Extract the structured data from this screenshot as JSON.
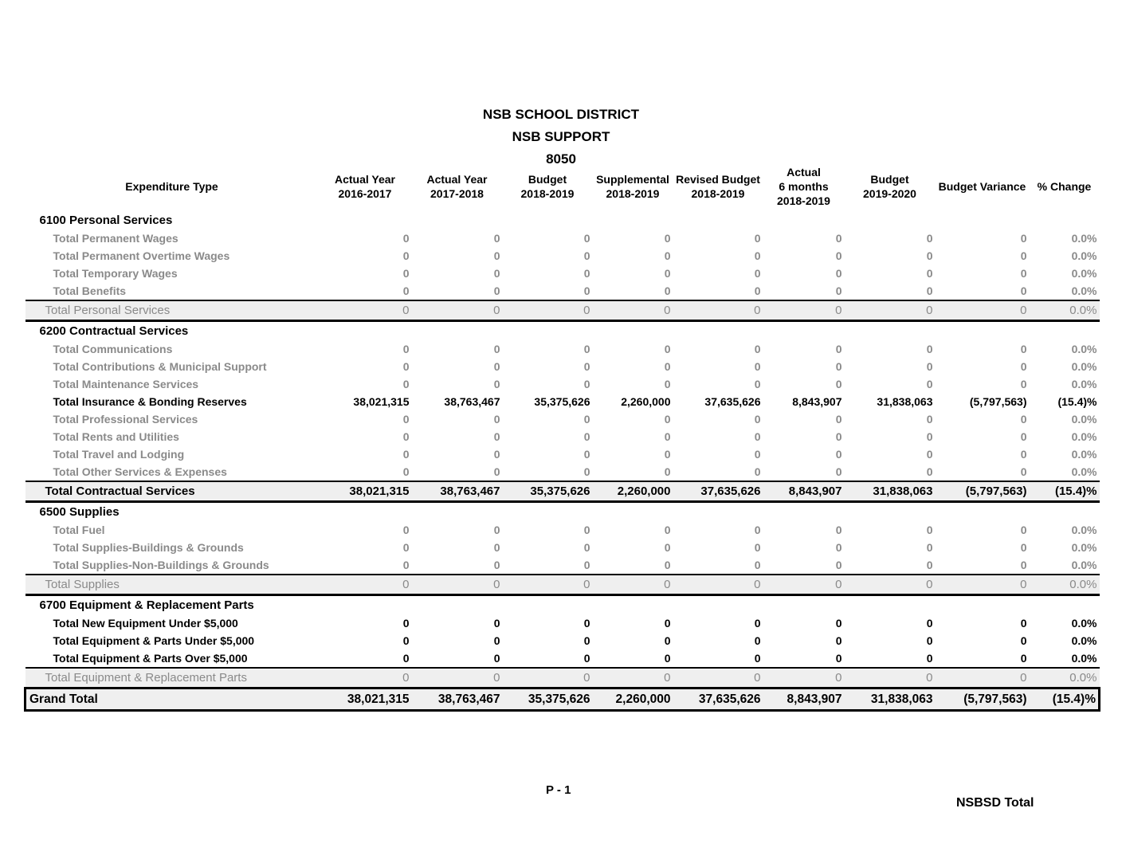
{
  "title": {
    "district": "NSB SCHOOL DISTRICT",
    "department": "NSB SUPPORT",
    "code": "8050"
  },
  "table": {
    "label_header": "Expenditure Type",
    "columns": [
      {
        "label": "Actual Year\n2016-2017"
      },
      {
        "label": "Actual Year\n2017-2018"
      },
      {
        "label": "Budget\n2018-2019"
      },
      {
        "label": "Supplemental\n2018-2019"
      },
      {
        "label": "Revised Budget\n2018-2019"
      },
      {
        "label": "Actual\n6 months\n2018-2019"
      },
      {
        "label": "Budget\n2019-2020"
      },
      {
        "label": "Budget Variance"
      },
      {
        "label": "% Change"
      }
    ],
    "sections": [
      {
        "heading": "6100 Personal Services",
        "rows": [
          {
            "label": "Total Permanent Wages",
            "emphasis": "muted",
            "values": [
              "0",
              "0",
              "0",
              "0",
              "0",
              "0",
              "0",
              "0",
              "0.0%"
            ]
          },
          {
            "label": "Total Permanent Overtime Wages",
            "emphasis": "muted",
            "values": [
              "0",
              "0",
              "0",
              "0",
              "0",
              "0",
              "0",
              "0",
              "0.0%"
            ]
          },
          {
            "label": "Total Temporary Wages",
            "emphasis": "muted",
            "values": [
              "0",
              "0",
              "0",
              "0",
              "0",
              "0",
              "0",
              "0",
              "0.0%"
            ]
          },
          {
            "label": "Total Benefits",
            "emphasis": "muted",
            "values": [
              "0",
              "0",
              "0",
              "0",
              "0",
              "0",
              "0",
              "0",
              "0.0%"
            ]
          }
        ],
        "total": {
          "label": "Total Personal Services",
          "emphasis": "muted",
          "values": [
            "0",
            "0",
            "0",
            "0",
            "0",
            "0",
            "0",
            "0",
            "0.0%"
          ]
        }
      },
      {
        "heading": "6200 Contractual Services",
        "rows": [
          {
            "label": "Total Communications",
            "emphasis": "muted",
            "values": [
              "0",
              "0",
              "0",
              "0",
              "0",
              "0",
              "0",
              "0",
              "0.0%"
            ]
          },
          {
            "label": "Total Contributions & Municipal Support",
            "emphasis": "muted",
            "values": [
              "0",
              "0",
              "0",
              "0",
              "0",
              "0",
              "0",
              "0",
              "0.0%"
            ]
          },
          {
            "label": "Total Maintenance Services",
            "emphasis": "muted",
            "values": [
              "0",
              "0",
              "0",
              "0",
              "0",
              "0",
              "0",
              "0",
              "0.0%"
            ]
          },
          {
            "label": "Total Insurance & Bonding Reserves",
            "emphasis": "strong",
            "values": [
              "38,021,315",
              "38,763,467",
              "35,375,626",
              "2,260,000",
              "37,635,626",
              "8,843,907",
              "31,838,063",
              "(5,797,563)",
              "(15.4)%"
            ]
          },
          {
            "label": "Total Professional Services",
            "emphasis": "muted",
            "values": [
              "0",
              "0",
              "0",
              "0",
              "0",
              "0",
              "0",
              "0",
              "0.0%"
            ]
          },
          {
            "label": "Total Rents and Utilities",
            "emphasis": "muted",
            "values": [
              "0",
              "0",
              "0",
              "0",
              "0",
              "0",
              "0",
              "0",
              "0.0%"
            ]
          },
          {
            "label": "Total Travel and Lodging",
            "emphasis": "muted",
            "values": [
              "0",
              "0",
              "0",
              "0",
              "0",
              "0",
              "0",
              "0",
              "0.0%"
            ]
          },
          {
            "label": "Total Other Services & Expenses",
            "emphasis": "muted",
            "values": [
              "0",
              "0",
              "0",
              "0",
              "0",
              "0",
              "0",
              "0",
              "0.0%"
            ]
          }
        ],
        "total": {
          "label": "Total Contractual Services",
          "emphasis": "strong",
          "values": [
            "38,021,315",
            "38,763,467",
            "35,375,626",
            "2,260,000",
            "37,635,626",
            "8,843,907",
            "31,838,063",
            "(5,797,563)",
            "(15.4)%"
          ]
        }
      },
      {
        "heading": "6500 Supplies",
        "rows": [
          {
            "label": "Total Fuel",
            "emphasis": "muted",
            "values": [
              "0",
              "0",
              "0",
              "0",
              "0",
              "0",
              "0",
              "0",
              "0.0%"
            ]
          },
          {
            "label": "Total Supplies-Buildings & Grounds",
            "emphasis": "muted",
            "values": [
              "0",
              "0",
              "0",
              "0",
              "0",
              "0",
              "0",
              "0",
              "0.0%"
            ]
          },
          {
            "label": "Total Supplies-Non-Buildings & Grounds",
            "emphasis": "muted",
            "values": [
              "0",
              "0",
              "0",
              "0",
              "0",
              "0",
              "0",
              "0",
              "0.0%"
            ]
          }
        ],
        "total": {
          "label": "Total Supplies",
          "emphasis": "muted",
          "values": [
            "0",
            "0",
            "0",
            "0",
            "0",
            "0",
            "0",
            "0",
            "0.0%"
          ]
        }
      },
      {
        "heading": "6700 Equipment & Replacement Parts",
        "rows": [
          {
            "label": "Total New Equipment Under $5,000",
            "emphasis": "strong",
            "values": [
              "0",
              "0",
              "0",
              "0",
              "0",
              "0",
              "0",
              "0",
              "0.0%"
            ]
          },
          {
            "label": "Total Equipment & Parts Under $5,000",
            "emphasis": "strong",
            "values": [
              "0",
              "0",
              "0",
              "0",
              "0",
              "0",
              "0",
              "0",
              "0.0%"
            ]
          },
          {
            "label": "Total Equipment & Parts Over $5,000",
            "emphasis": "strong",
            "values": [
              "0",
              "0",
              "0",
              "0",
              "0",
              "0",
              "0",
              "0",
              "0.0%"
            ]
          }
        ],
        "total": {
          "label": "Total Equipment & Replacement Parts",
          "emphasis": "muted",
          "values": [
            "0",
            "0",
            "0",
            "0",
            "0",
            "0",
            "0",
            "0",
            "0.0%"
          ]
        }
      }
    ],
    "grand_total": {
      "label": "Grand Total",
      "emphasis": "strong",
      "values": [
        "38,021,315",
        "38,763,467",
        "35,375,626",
        "2,260,000",
        "37,635,626",
        "8,843,907",
        "31,838,063",
        "(5,797,563)",
        "(15.4)%"
      ]
    }
  },
  "footer": {
    "page_number": "P - 1",
    "right_label": "NSBSD Total"
  }
}
